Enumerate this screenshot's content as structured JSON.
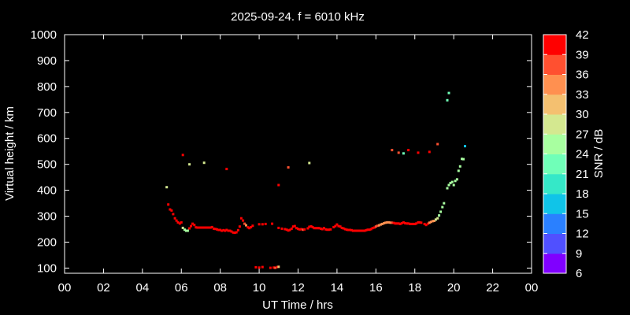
{
  "chart_data": {
    "type": "scatter",
    "title": "2025-09-24. f = 6010 kHz",
    "xlabel": "UT Time / hrs",
    "ylabel": "Virtual height / km",
    "xlim": [
      0,
      24
    ],
    "ylim": [
      80,
      1000
    ],
    "x_ticks": [
      "00",
      "02",
      "04",
      "06",
      "08",
      "10",
      "12",
      "14",
      "16",
      "18",
      "20",
      "22",
      "00"
    ],
    "y_ticks": [
      "100",
      "200",
      "300",
      "400",
      "500",
      "600",
      "700",
      "800",
      "900",
      "1000"
    ],
    "colorbar": {
      "label": "SNR / dB",
      "ticks": [
        "6",
        "9",
        "12",
        "15",
        "18",
        "21",
        "24",
        "27",
        "30",
        "33",
        "36",
        "39",
        "42"
      ],
      "range": [
        6,
        42
      ],
      "colors": [
        "#8000ff",
        "#5050ff",
        "#2a80ff",
        "#10c4e8",
        "#35e8c8",
        "#70ffb8",
        "#a8ffa0",
        "#d4e890",
        "#f4c070",
        "#ff9050",
        "#ff5030",
        "#ff0000"
      ]
    },
    "background": "#000000",
    "grid": false,
    "points": [
      [
        5.25,
        412,
        27
      ],
      [
        5.33,
        345,
        41
      ],
      [
        5.42,
        326,
        41
      ],
      [
        5.5,
        322,
        41
      ],
      [
        5.58,
        308,
        41
      ],
      [
        5.67,
        292,
        41
      ],
      [
        5.75,
        283,
        41
      ],
      [
        5.83,
        276,
        40
      ],
      [
        5.92,
        272,
        40
      ],
      [
        6.0,
        276,
        40
      ],
      [
        6.08,
        255,
        28
      ],
      [
        6.17,
        248,
        26
      ],
      [
        6.25,
        244,
        25
      ],
      [
        6.33,
        244,
        25
      ],
      [
        6.42,
        253,
        40
      ],
      [
        6.5,
        262,
        41
      ],
      [
        6.58,
        271,
        41
      ],
      [
        6.67,
        266,
        41
      ],
      [
        6.75,
        257,
        41
      ],
      [
        6.83,
        256,
        41
      ],
      [
        6.92,
        256,
        41
      ],
      [
        7.0,
        256,
        41
      ],
      [
        7.08,
        256,
        41
      ],
      [
        7.17,
        256,
        41
      ],
      [
        7.25,
        256,
        41
      ],
      [
        7.33,
        256,
        41
      ],
      [
        7.42,
        256,
        41
      ],
      [
        7.5,
        256,
        41
      ],
      [
        7.58,
        258,
        41
      ],
      [
        7.67,
        252,
        41
      ],
      [
        7.75,
        251,
        41
      ],
      [
        7.83,
        249,
        41
      ],
      [
        7.92,
        247,
        41
      ],
      [
        8.0,
        247,
        41
      ],
      [
        8.08,
        244,
        41
      ],
      [
        8.17,
        246,
        41
      ],
      [
        8.25,
        244,
        41
      ],
      [
        8.33,
        247,
        41
      ],
      [
        8.42,
        244,
        41
      ],
      [
        8.5,
        244,
        41
      ],
      [
        8.58,
        241,
        41
      ],
      [
        8.67,
        237,
        41
      ],
      [
        8.75,
        236,
        41
      ],
      [
        8.83,
        238,
        41
      ],
      [
        8.92,
        246,
        41
      ],
      [
        9.0,
        260,
        41
      ],
      [
        9.08,
        292,
        40
      ],
      [
        9.17,
        283,
        39
      ],
      [
        9.25,
        271,
        38
      ],
      [
        9.33,
        265,
        34
      ],
      [
        9.42,
        257,
        41
      ],
      [
        9.5,
        254,
        41
      ],
      [
        9.58,
        258,
        41
      ],
      [
        9.67,
        263,
        41
      ],
      [
        10.0,
        269,
        41
      ],
      [
        10.17,
        269,
        41
      ],
      [
        10.33,
        270,
        41
      ],
      [
        10.67,
        271,
        41
      ],
      [
        11.0,
        255,
        41
      ],
      [
        11.17,
        252,
        41
      ],
      [
        11.33,
        250,
        41
      ],
      [
        11.42,
        248,
        41
      ],
      [
        11.5,
        245,
        41
      ],
      [
        11.58,
        247,
        41
      ],
      [
        11.67,
        252,
        41
      ],
      [
        11.75,
        260,
        41
      ],
      [
        11.83,
        262,
        41
      ],
      [
        11.92,
        254,
        41
      ],
      [
        12.0,
        251,
        41
      ],
      [
        12.08,
        249,
        41
      ],
      [
        12.17,
        250,
        41
      ],
      [
        12.25,
        248,
        38
      ],
      [
        12.33,
        249,
        41
      ],
      [
        12.5,
        253,
        41
      ],
      [
        12.58,
        259,
        41
      ],
      [
        12.67,
        261,
        41
      ],
      [
        12.75,
        258,
        41
      ],
      [
        12.83,
        254,
        41
      ],
      [
        12.92,
        254,
        41
      ],
      [
        13.0,
        254,
        41
      ],
      [
        13.08,
        254,
        41
      ],
      [
        13.17,
        252,
        41
      ],
      [
        13.25,
        250,
        41
      ],
      [
        13.33,
        254,
        41
      ],
      [
        13.42,
        249,
        41
      ],
      [
        13.5,
        248,
        41
      ],
      [
        13.58,
        248,
        41
      ],
      [
        13.67,
        249,
        41
      ],
      [
        13.83,
        258,
        41
      ],
      [
        13.92,
        262,
        41
      ],
      [
        14.0,
        268,
        41
      ],
      [
        14.08,
        262,
        41
      ],
      [
        14.17,
        260,
        41
      ],
      [
        14.25,
        255,
        41
      ],
      [
        14.33,
        253,
        41
      ],
      [
        14.42,
        250,
        41
      ],
      [
        14.5,
        248,
        41
      ],
      [
        14.58,
        247,
        41
      ],
      [
        14.67,
        247,
        41
      ],
      [
        14.75,
        246,
        41
      ],
      [
        14.83,
        244,
        41
      ],
      [
        14.92,
        244,
        41
      ],
      [
        15.0,
        244,
        41
      ],
      [
        15.08,
        244,
        41
      ],
      [
        15.17,
        244,
        41
      ],
      [
        15.25,
        244,
        41
      ],
      [
        15.33,
        244,
        41
      ],
      [
        15.42,
        244,
        41
      ],
      [
        15.5,
        246,
        41
      ],
      [
        15.58,
        248,
        41
      ],
      [
        15.67,
        248,
        41
      ],
      [
        15.75,
        250,
        41
      ],
      [
        15.83,
        254,
        41
      ],
      [
        15.92,
        256,
        41
      ],
      [
        16.0,
        260,
        38
      ],
      [
        16.08,
        263,
        36
      ],
      [
        16.17,
        265,
        35
      ],
      [
        16.25,
        268,
        34
      ],
      [
        16.33,
        270,
        33
      ],
      [
        16.42,
        273,
        33
      ],
      [
        16.5,
        275,
        33
      ],
      [
        16.58,
        276,
        33
      ],
      [
        16.67,
        276,
        33
      ],
      [
        16.75,
        275,
        35
      ],
      [
        16.83,
        275,
        36
      ],
      [
        16.92,
        274,
        39
      ],
      [
        17.0,
        272,
        40
      ],
      [
        17.08,
        272,
        41
      ],
      [
        17.17,
        272,
        41
      ],
      [
        17.25,
        270,
        41
      ],
      [
        17.33,
        273,
        40
      ],
      [
        17.42,
        276,
        40
      ],
      [
        17.5,
        273,
        41
      ],
      [
        17.58,
        272,
        41
      ],
      [
        17.67,
        272,
        41
      ],
      [
        17.75,
        270,
        41
      ],
      [
        17.83,
        270,
        41
      ],
      [
        17.92,
        270,
        41
      ],
      [
        18.0,
        270,
        41
      ],
      [
        18.08,
        272,
        41
      ],
      [
        18.17,
        276,
        41
      ],
      [
        18.25,
        276,
        40
      ],
      [
        18.33,
        275,
        41
      ],
      [
        18.5,
        270,
        41
      ],
      [
        18.58,
        266,
        41
      ],
      [
        18.67,
        271,
        41
      ],
      [
        18.75,
        275,
        33
      ],
      [
        18.83,
        278,
        33
      ],
      [
        18.92,
        281,
        33
      ],
      [
        19.0,
        282,
        33
      ],
      [
        19.08,
        287,
        28
      ],
      [
        19.17,
        292,
        27
      ],
      [
        19.25,
        303,
        25
      ],
      [
        19.33,
        317,
        24
      ],
      [
        19.42,
        335,
        24
      ],
      [
        19.5,
        350,
        24
      ],
      [
        19.67,
        408,
        24
      ],
      [
        19.75,
        420,
        24
      ],
      [
        19.83,
        428,
        24
      ],
      [
        19.92,
        432,
        24
      ],
      [
        20.0,
        420,
        24
      ],
      [
        20.08,
        436,
        24
      ],
      [
        20.17,
        442,
        24
      ],
      [
        20.25,
        475,
        25
      ],
      [
        20.33,
        492,
        24
      ],
      [
        20.42,
        521,
        24
      ],
      [
        20.5,
        520,
        24
      ],
      [
        20.58,
        570,
        15
      ],
      [
        6.08,
        536,
        41
      ],
      [
        6.42,
        500,
        27
      ],
      [
        7.17,
        506,
        27
      ],
      [
        8.33,
        482,
        39
      ],
      [
        11.0,
        420,
        41
      ],
      [
        11.5,
        488,
        36
      ],
      [
        12.58,
        505,
        27
      ],
      [
        16.83,
        555,
        38
      ],
      [
        17.17,
        545,
        36
      ],
      [
        17.42,
        542,
        21
      ],
      [
        17.67,
        555,
        40
      ],
      [
        18.17,
        545,
        40
      ],
      [
        18.75,
        548,
        40
      ],
      [
        19.17,
        578,
        36
      ],
      [
        19.75,
        775,
        21
      ],
      [
        19.67,
        747,
        21
      ],
      [
        9.83,
        103,
        41
      ],
      [
        10.0,
        102,
        41
      ],
      [
        10.17,
        104,
        41
      ],
      [
        10.58,
        101,
        41
      ],
      [
        10.75,
        102,
        41
      ],
      [
        10.92,
        104,
        41
      ],
      [
        11.0,
        105,
        30
      ],
      [
        10.83,
        101,
        36
      ]
    ]
  }
}
